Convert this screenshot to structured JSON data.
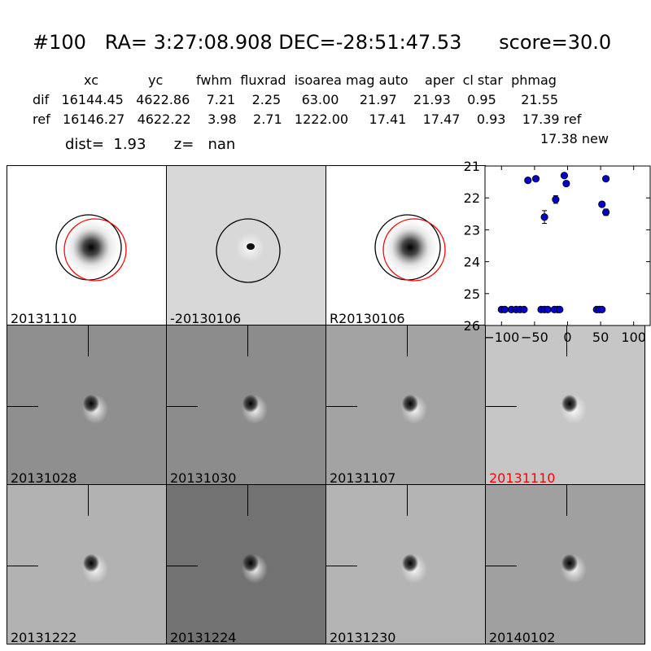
{
  "header": {
    "title": "#100   RA= 3:27:08.908 DEC=-28:51:47.53      score=30.0",
    "columns": "xc            yc        fwhm  fluxrad  isoarea mag auto    aper  cl star  phmag",
    "dif_row": "dif   16144.45   4622.86    7.21    2.25     63.00     21.97    21.93    0.95      21.55",
    "ref_row": "ref   16146.27   4622.22    3.98    2.71   1222.00     17.41    17.47    0.93    17.39 ref",
    "new_row": "17.38 new",
    "dist_row": "dist=  1.93      z=   nan"
  },
  "colors": {
    "highlight": "#ff0000",
    "marker": "#0000cc"
  },
  "stamps": [
    {
      "label": "20131110",
      "bg": "#ffffff",
      "kind": "source",
      "red_circle": true
    },
    {
      "label": "-20130106",
      "bg": "#d8d8d8",
      "kind": "dipole-small",
      "red_circle": false
    },
    {
      "label": "R20130106",
      "bg": "#ffffff",
      "kind": "source",
      "red_circle": true
    }
  ],
  "history": [
    {
      "label": "20131028",
      "bg": "#8f8f8f",
      "highlight": false
    },
    {
      "label": "20131030",
      "bg": "#8c8c8c",
      "highlight": false
    },
    {
      "label": "20131107",
      "bg": "#a3a3a3",
      "highlight": false
    },
    {
      "label": "20131110",
      "bg": "#c6c6c6",
      "highlight": true
    },
    {
      "label": "20131222",
      "bg": "#b2b2b2",
      "highlight": false
    },
    {
      "label": "20131224",
      "bg": "#727272",
      "highlight": false
    },
    {
      "label": "20131230",
      "bg": "#b4b4b4",
      "highlight": false
    },
    {
      "label": "20140102",
      "bg": "#a0a0a0",
      "highlight": false
    }
  ],
  "chart_data": {
    "type": "scatter",
    "x_ticks": [
      "−100",
      "−50",
      "0",
      "50",
      "100"
    ],
    "x_tick_values": [
      -100,
      -50,
      0,
      50,
      100
    ],
    "y_ticks": [
      "21",
      "22",
      "23",
      "24",
      "25",
      "26"
    ],
    "y_tick_values": [
      21,
      22,
      23,
      24,
      25,
      26
    ],
    "xlim": [
      -125,
      125
    ],
    "ylim": [
      26,
      21
    ],
    "y_inverted": true,
    "points": [
      {
        "x": -100,
        "y": 25.5
      },
      {
        "x": -95,
        "y": 25.5
      },
      {
        "x": -85,
        "y": 25.5
      },
      {
        "x": -78,
        "y": 25.5
      },
      {
        "x": -72,
        "y": 25.5
      },
      {
        "x": -66,
        "y": 25.5
      },
      {
        "x": -40,
        "y": 25.5
      },
      {
        "x": -35,
        "y": 25.5
      },
      {
        "x": -30,
        "y": 25.5
      },
      {
        "x": -20,
        "y": 25.5
      },
      {
        "x": -15,
        "y": 25.5
      },
      {
        "x": -12,
        "y": 25.5
      },
      {
        "x": 44,
        "y": 25.5
      },
      {
        "x": 48,
        "y": 25.5
      },
      {
        "x": 52,
        "y": 25.5
      },
      {
        "x": -60,
        "y": 21.45
      },
      {
        "x": -48,
        "y": 21.4
      },
      {
        "x": -35,
        "y": 22.6,
        "err": 0.2
      },
      {
        "x": -18,
        "y": 22.05,
        "err": 0.12
      },
      {
        "x": -5,
        "y": 21.3
      },
      {
        "x": -2,
        "y": 21.55
      },
      {
        "x": 52,
        "y": 22.2
      },
      {
        "x": 58,
        "y": 22.45,
        "err": 0.1
      },
      {
        "x": 58,
        "y": 21.4
      }
    ]
  }
}
